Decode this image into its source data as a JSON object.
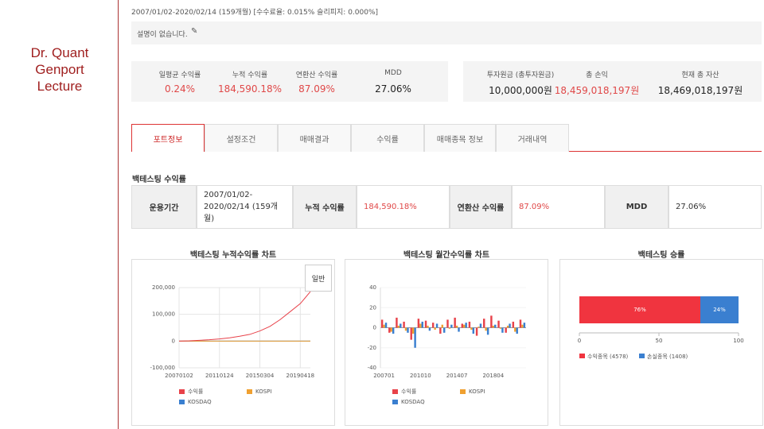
{
  "sidebar": {
    "title": "Dr. Quant Genport Lecture"
  },
  "header": {
    "period": "2007/01/02-2020/02/14 (159개월) [수수료율: 0.015% 슬리피지: 0.000%]",
    "description": "설명이 없습니다."
  },
  "stats": [
    {
      "label": "일평균 수익률",
      "value": "0.24%"
    },
    {
      "label": "누적 수익률",
      "value": "184,590.18%"
    },
    {
      "label": "연환산 수익률",
      "value": "87.09%"
    },
    {
      "label": "MDD",
      "value": "27.06%"
    }
  ],
  "assets": [
    {
      "label": "투자원금 (총투자원금)",
      "value": "10,000,000원"
    },
    {
      "label": "총 손익",
      "value": "18,459,018,197원"
    },
    {
      "label": "현재 총 자산",
      "value": "18,469,018,197원"
    }
  ],
  "tabs": [
    "포트정보",
    "설정조건",
    "매매결과",
    "수익률",
    "매매종목 정보",
    "거래내역"
  ],
  "section_title": "백테스팅 수익률",
  "summary_table": {
    "cells": [
      "운용기간",
      "2007/01/02-2020/02/14 (159개월)",
      "누적 수익률",
      "184,590.18%",
      "연환산 수익률",
      "87.09%",
      "MDD",
      "27.06%"
    ]
  },
  "chart_button": "일반",
  "chart_data": [
    {
      "type": "line",
      "title": "백테스팅 누적수익률 차트",
      "categories": [
        "20070102",
        null,
        null,
        null,
        "20110124",
        null,
        null,
        null,
        "20150304",
        null,
        null,
        null,
        "20190418",
        null
      ],
      "series": [
        {
          "name": "수익률",
          "color": "#e8424a",
          "values": [
            0,
            1000,
            3000,
            5000,
            8000,
            12000,
            18000,
            25000,
            38000,
            55000,
            80000,
            110000,
            140000,
            185000
          ]
        },
        {
          "name": "KOSPI",
          "color": "#f0a030",
          "values": [
            0,
            0,
            0,
            0,
            0,
            0,
            0,
            0,
            0,
            0,
            0,
            0,
            0,
            0
          ]
        },
        {
          "name": "KOSDAQ",
          "color": "#3a7fd0",
          "values": [
            0,
            0,
            0,
            0,
            0,
            0,
            0,
            0,
            0,
            0,
            0,
            0,
            0,
            0
          ]
        }
      ],
      "ylim": [
        -100000,
        200000
      ],
      "yticks": [
        {
          "value": -100000,
          "label": "-100,000"
        },
        0,
        {
          "value": 100000,
          "label": "100,000"
        },
        {
          "value": 200000,
          "label": "200,000"
        }
      ],
      "grid": true
    },
    {
      "type": "bar",
      "title": "백테스팅 월간수익률 차트",
      "categories": [
        "200701",
        null,
        null,
        null,
        null,
        "201010",
        null,
        null,
        null,
        null,
        "201407",
        null,
        null,
        null,
        null,
        "201804",
        null,
        null,
        null,
        null
      ],
      "series": [
        {
          "name": "수익률",
          "color": "#e8424a",
          "values": [
            8,
            -5,
            10,
            6,
            -12,
            9,
            7,
            5,
            -6,
            8,
            10,
            4,
            6,
            -8,
            9,
            12,
            7,
            -5,
            6,
            8
          ]
        },
        {
          "name": "KOSPI",
          "color": "#f0a030",
          "values": [
            3,
            -4,
            2,
            -3,
            -6,
            4,
            2,
            -2,
            3,
            -1,
            2,
            3,
            -2,
            1,
            -3,
            2,
            -1,
            2,
            -4,
            3
          ]
        },
        {
          "name": "KOSDAQ",
          "color": "#3a7fd0",
          "values": [
            5,
            -6,
            4,
            -5,
            -20,
            6,
            -3,
            4,
            -5,
            3,
            -4,
            5,
            -6,
            4,
            -7,
            3,
            -5,
            4,
            -6,
            5
          ]
        }
      ],
      "ylim": [
        -40,
        40
      ],
      "yticks": [
        -40,
        -20,
        0,
        20,
        40
      ],
      "grid": false
    },
    {
      "type": "bar",
      "title": "백테스팅 승률",
      "horizontal": true,
      "stacked": true,
      "series": [
        {
          "name": "수익종목 (4578)",
          "color": "#f0343f",
          "values": [
            76
          ],
          "value_labels": [
            "76%"
          ]
        },
        {
          "name": "손실종목 (1408)",
          "color": "#3a7fd0",
          "values": [
            24
          ],
          "value_labels": [
            "24%"
          ]
        }
      ],
      "xlim": [
        0,
        100
      ],
      "xticks": [
        0,
        50,
        100
      ]
    }
  ]
}
